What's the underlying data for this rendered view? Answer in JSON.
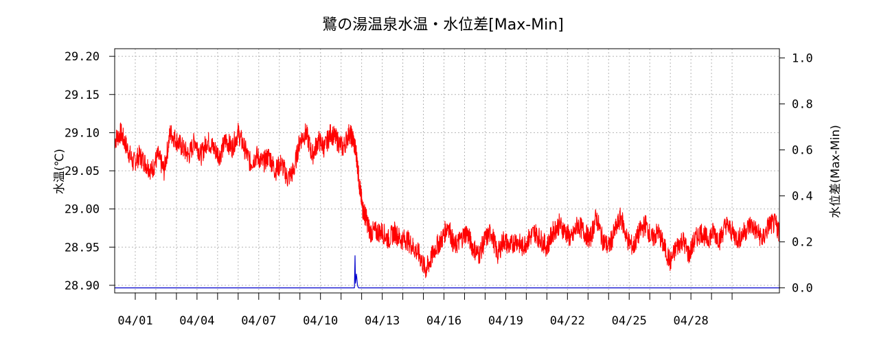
{
  "chart_data": {
    "type": "line",
    "title": "鷺の湯温泉水温・水位差[Max-Min]",
    "ylabel_left": "水温(℃)",
    "ylabel_right": "水位差(Max-Min)",
    "x_axis": {
      "start_day": 31,
      "end_day": 63.3,
      "tick_days": [
        32,
        33,
        34,
        35,
        36,
        37,
        38,
        39,
        40,
        41,
        42,
        43,
        44,
        45,
        46,
        47,
        48,
        49,
        50,
        51,
        52,
        53,
        54,
        55,
        56,
        57,
        58,
        59,
        60,
        61
      ],
      "labels": [
        {
          "day": 32,
          "text": "04/01"
        },
        {
          "day": 35,
          "text": "04/04"
        },
        {
          "day": 38,
          "text": "04/07"
        },
        {
          "day": 41,
          "text": "04/10"
        },
        {
          "day": 44,
          "text": "04/13"
        },
        {
          "day": 47,
          "text": "04/16"
        },
        {
          "day": 50,
          "text": "04/19"
        },
        {
          "day": 53,
          "text": "04/22"
        },
        {
          "day": 56,
          "text": "04/25"
        },
        {
          "day": 59,
          "text": "04/28"
        }
      ]
    },
    "y_left": {
      "ylim": [
        28.89,
        29.21
      ],
      "ticks": [
        "29.20",
        "29.15",
        "29.10",
        "29.05",
        "29.00",
        "28.95",
        "28.90"
      ]
    },
    "y_right": {
      "ylim": [
        -0.022,
        1.04
      ],
      "ticks": [
        "1.0",
        "0.8",
        "0.6",
        "0.4",
        "0.2",
        "0.0"
      ]
    },
    "grid": true,
    "series": [
      {
        "axis": "left",
        "color": "#ff0000",
        "points": [
          [
            31.0,
            29.09
          ],
          [
            31.3,
            29.1
          ],
          [
            31.6,
            29.08
          ],
          [
            31.9,
            29.06
          ],
          [
            32.2,
            29.07
          ],
          [
            32.5,
            29.06
          ],
          [
            32.8,
            29.05
          ],
          [
            33.1,
            29.07
          ],
          [
            33.4,
            29.05
          ],
          [
            33.7,
            29.1
          ],
          [
            34.0,
            29.09
          ],
          [
            34.3,
            29.08
          ],
          [
            34.6,
            29.07
          ],
          [
            34.9,
            29.09
          ],
          [
            35.2,
            29.07
          ],
          [
            35.5,
            29.09
          ],
          [
            35.8,
            29.08
          ],
          [
            36.1,
            29.07
          ],
          [
            36.4,
            29.09
          ],
          [
            36.7,
            29.08
          ],
          [
            37.0,
            29.1
          ],
          [
            37.3,
            29.08
          ],
          [
            37.6,
            29.06
          ],
          [
            37.9,
            29.07
          ],
          [
            38.2,
            29.06
          ],
          [
            38.5,
            29.07
          ],
          [
            38.8,
            29.05
          ],
          [
            39.1,
            29.06
          ],
          [
            39.4,
            29.04
          ],
          [
            39.7,
            29.05
          ],
          [
            40.0,
            29.09
          ],
          [
            40.3,
            29.1
          ],
          [
            40.6,
            29.07
          ],
          [
            40.9,
            29.09
          ],
          [
            41.2,
            29.08
          ],
          [
            41.5,
            29.1
          ],
          [
            41.8,
            29.09
          ],
          [
            42.1,
            29.08
          ],
          [
            42.4,
            29.1
          ],
          [
            42.6,
            29.09
          ],
          [
            42.75,
            29.07
          ],
          [
            42.9,
            29.03
          ],
          [
            43.05,
            29.0
          ],
          [
            43.2,
            28.99
          ],
          [
            43.4,
            28.97
          ],
          [
            43.7,
            28.97
          ],
          [
            44.0,
            28.97
          ],
          [
            44.3,
            28.96
          ],
          [
            44.6,
            28.97
          ],
          [
            44.9,
            28.96
          ],
          [
            45.2,
            28.96
          ],
          [
            45.5,
            28.95
          ],
          [
            45.8,
            28.94
          ],
          [
            46.1,
            28.92
          ],
          [
            46.3,
            28.93
          ],
          [
            46.6,
            28.95
          ],
          [
            46.9,
            28.96
          ],
          [
            47.2,
            28.98
          ],
          [
            47.5,
            28.95
          ],
          [
            47.8,
            28.96
          ],
          [
            48.1,
            28.97
          ],
          [
            48.4,
            28.95
          ],
          [
            48.7,
            28.94
          ],
          [
            49.0,
            28.96
          ],
          [
            49.3,
            28.97
          ],
          [
            49.6,
            28.94
          ],
          [
            49.9,
            28.96
          ],
          [
            50.2,
            28.95
          ],
          [
            50.5,
            28.96
          ],
          [
            50.8,
            28.95
          ],
          [
            51.1,
            28.96
          ],
          [
            51.4,
            28.97
          ],
          [
            51.7,
            28.96
          ],
          [
            52.0,
            28.95
          ],
          [
            52.3,
            28.97
          ],
          [
            52.6,
            28.98
          ],
          [
            52.9,
            28.97
          ],
          [
            53.2,
            28.96
          ],
          [
            53.5,
            28.98
          ],
          [
            53.8,
            28.97
          ],
          [
            54.1,
            28.96
          ],
          [
            54.4,
            28.99
          ],
          [
            54.7,
            28.96
          ],
          [
            55.0,
            28.95
          ],
          [
            55.3,
            28.97
          ],
          [
            55.6,
            28.99
          ],
          [
            55.9,
            28.96
          ],
          [
            56.2,
            28.95
          ],
          [
            56.5,
            28.97
          ],
          [
            56.8,
            28.98
          ],
          [
            57.1,
            28.96
          ],
          [
            57.4,
            28.97
          ],
          [
            57.7,
            28.95
          ],
          [
            58.0,
            28.93
          ],
          [
            58.3,
            28.95
          ],
          [
            58.6,
            28.96
          ],
          [
            58.9,
            28.94
          ],
          [
            59.2,
            28.96
          ],
          [
            59.5,
            28.97
          ],
          [
            59.8,
            28.96
          ],
          [
            60.1,
            28.97
          ],
          [
            60.4,
            28.96
          ],
          [
            60.7,
            28.98
          ],
          [
            61.0,
            28.97
          ],
          [
            61.3,
            28.96
          ],
          [
            61.6,
            28.97
          ],
          [
            61.9,
            28.98
          ],
          [
            62.2,
            28.97
          ],
          [
            62.5,
            28.96
          ],
          [
            62.8,
            28.98
          ],
          [
            63.1,
            28.98
          ],
          [
            63.3,
            28.97
          ]
        ]
      },
      {
        "axis": "right",
        "color": "#0000cc",
        "points": [
          [
            31.0,
            0.0
          ],
          [
            42.65,
            0.0
          ],
          [
            42.68,
            0.14
          ],
          [
            42.7,
            0.02
          ],
          [
            42.75,
            0.06
          ],
          [
            42.8,
            0.01
          ],
          [
            42.85,
            0.0
          ],
          [
            63.3,
            0.0
          ]
        ]
      }
    ]
  }
}
